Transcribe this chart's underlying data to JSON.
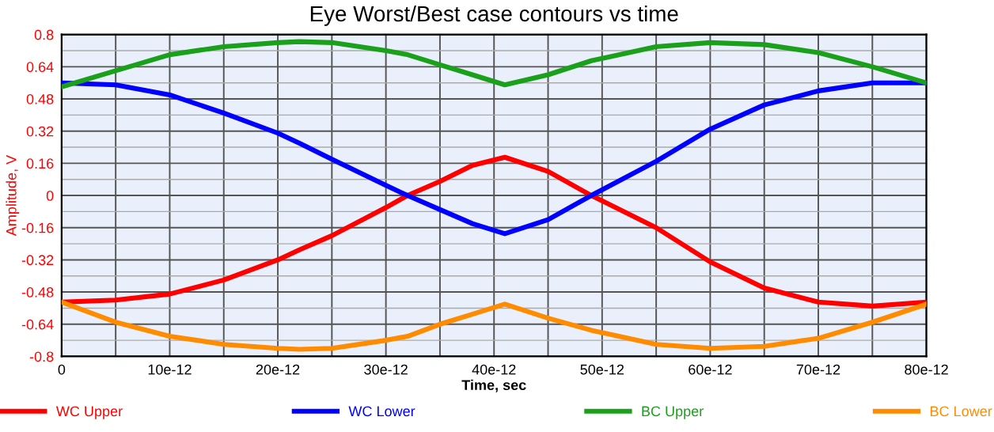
{
  "chart_data": {
    "type": "line",
    "title": "Eye Worst/Best case contours vs time",
    "xlabel": "Time, sec",
    "ylabel": "Amplitude, V",
    "x": [
      0,
      5e-12,
      1e-11,
      1.5e-11,
      2e-11,
      2.2e-11,
      2.5e-11,
      3e-11,
      3.2e-11,
      3.5e-11,
      3.8e-11,
      4.1e-11,
      4.5e-11,
      4.9e-11,
      5.5e-11,
      6e-11,
      6.5e-11,
      7e-11,
      7.5e-11,
      8e-11
    ],
    "series": [
      {
        "name": "WC Upper",
        "color": "#ff0000",
        "values": [
          -0.53,
          -0.52,
          -0.49,
          -0.42,
          -0.32,
          -0.27,
          -0.2,
          -0.06,
          0,
          0.07,
          0.15,
          0.19,
          0.12,
          0,
          -0.16,
          -0.33,
          -0.46,
          -0.53,
          -0.55,
          -0.53
        ]
      },
      {
        "name": "WC Lower",
        "color": "#0000ff",
        "values": [
          0.56,
          0.55,
          0.5,
          0.41,
          0.31,
          0.26,
          0.18,
          0.05,
          0,
          -0.07,
          -0.14,
          -0.19,
          -0.12,
          0,
          0.17,
          0.33,
          0.45,
          0.52,
          0.56,
          0.56
        ]
      },
      {
        "name": "BC Upper",
        "color": "#1aa01a",
        "values": [
          0.54,
          0.62,
          0.7,
          0.74,
          0.76,
          0.765,
          0.76,
          0.72,
          0.7,
          0.65,
          0.6,
          0.55,
          0.6,
          0.67,
          0.74,
          0.76,
          0.75,
          0.71,
          0.64,
          0.56
        ]
      },
      {
        "name": "BC Lower",
        "color": "#ff8c00",
        "values": [
          -0.53,
          -0.63,
          -0.7,
          -0.74,
          -0.76,
          -0.765,
          -0.76,
          -0.72,
          -0.7,
          -0.64,
          -0.59,
          -0.54,
          -0.61,
          -0.67,
          -0.74,
          -0.76,
          -0.75,
          -0.71,
          -0.63,
          -0.54
        ]
      }
    ],
    "xlim": [
      0,
      8e-11
    ],
    "ylim": [
      -0.8,
      0.8
    ],
    "xticks": [
      0,
      {
        "value": 5e-12,
        "label": null
      },
      {
        "value": 1e-11,
        "label": "10e-12"
      },
      {
        "value": 1.5e-11,
        "label": null
      },
      {
        "value": 2e-11,
        "label": "20e-12"
      },
      {
        "value": 2.5e-11,
        "label": null
      },
      {
        "value": 3e-11,
        "label": "30e-12"
      },
      {
        "value": 3.5e-11,
        "label": null
      },
      {
        "value": 4e-11,
        "label": "40e-12"
      },
      {
        "value": 4.5e-11,
        "label": null
      },
      {
        "value": 5e-11,
        "label": "50e-12"
      },
      {
        "value": 5.5e-11,
        "label": null
      },
      {
        "value": 6e-11,
        "label": "60e-12"
      },
      {
        "value": 6.5e-11,
        "label": null
      },
      {
        "value": 7e-11,
        "label": "70e-12"
      },
      {
        "value": 7.5e-11,
        "label": null
      },
      {
        "value": 8e-11,
        "label": "80e-12"
      }
    ],
    "yticks": [
      -0.8,
      -0.64,
      -0.48,
      -0.32,
      -0.16,
      0,
      0.16,
      0.32,
      0.48,
      0.64,
      0.8
    ],
    "grid": true,
    "legend": "bottom",
    "marker": "none",
    "line_style": "solid"
  }
}
